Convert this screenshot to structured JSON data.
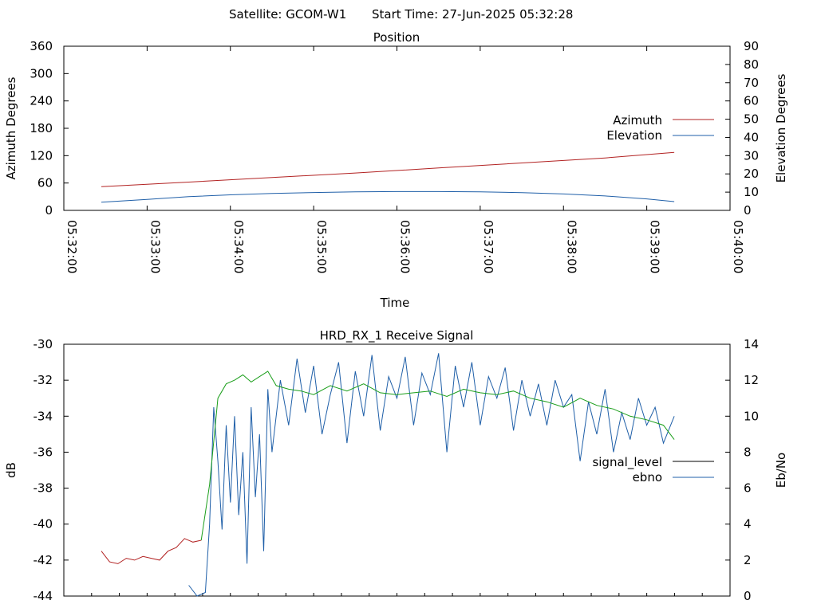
{
  "header": {
    "satellite": "Satellite: GCOM-W1",
    "start_time": "Start Time: 27-Jun-2025 05:32:28"
  },
  "chart_data": [
    {
      "type": "line",
      "title": "Position",
      "xlabel": "Time",
      "ylabel": "Azimuth Degrees",
      "y2label": "Elevation Degrees",
      "x_ticks": [
        "05:32:00",
        "05:33:00",
        "05:34:00",
        "05:35:00",
        "05:36:00",
        "05:37:00",
        "05:38:00",
        "05:39:00",
        "05:40:00"
      ],
      "x_range_minutes": [
        0,
        8
      ],
      "ylim": [
        0,
        360
      ],
      "y_ticks": [
        "0",
        "60",
        "120",
        "180",
        "240",
        "300",
        "360"
      ],
      "y2lim": [
        0,
        90
      ],
      "y2_ticks": [
        "0",
        "10",
        "20",
        "30",
        "40",
        "50",
        "60",
        "70",
        "80",
        "90"
      ],
      "legend_position": "right",
      "series": [
        {
          "name": "Azimuth",
          "axis": "y",
          "color": "#b22222",
          "x": [
            0.45,
            1.5,
            2.5,
            3.5,
            4.5,
            5.5,
            6.5,
            7.33
          ],
          "values": [
            52,
            62,
            72,
            82,
            93,
            104,
            115,
            127
          ]
        },
        {
          "name": "Elevation",
          "axis": "y2",
          "color": "#1f5fa8",
          "x": [
            0.45,
            1.0,
            1.5,
            2.0,
            2.5,
            3.0,
            3.5,
            4.0,
            4.5,
            5.0,
            5.5,
            6.0,
            6.5,
            7.0,
            7.33
          ],
          "values": [
            4.5,
            6.0,
            7.5,
            8.5,
            9.3,
            9.8,
            10.2,
            10.3,
            10.3,
            10.2,
            9.7,
            9.0,
            7.9,
            6.3,
            4.8
          ]
        }
      ]
    },
    {
      "type": "line",
      "title": "HRD_RX_1 Receive Signal",
      "ylabel": "dB",
      "y2label": "Eb/No",
      "x_range_minutes": [
        0,
        8
      ],
      "ylim": [
        -44,
        -30
      ],
      "y_ticks": [
        "-44",
        "-42",
        "-40",
        "-38",
        "-36",
        "-34",
        "-32",
        "-30"
      ],
      "y2lim": [
        0,
        14
      ],
      "y2_ticks": [
        "0",
        "2",
        "4",
        "6",
        "8",
        "10",
        "12",
        "14"
      ],
      "legend_position": "right",
      "series": [
        {
          "name": "signal_level",
          "legend_color": "#000000",
          "low_color": "#b22222",
          "high_color": "#1a9e1a",
          "axis": "y",
          "x": [
            0.45,
            0.55,
            0.65,
            0.75,
            0.85,
            0.95,
            1.05,
            1.15,
            1.25,
            1.35,
            1.45,
            1.55,
            1.65,
            1.75,
            1.85,
            1.95,
            2.05,
            2.15,
            2.25,
            2.35,
            2.45,
            2.55,
            2.7,
            2.85,
            3.0,
            3.2,
            3.4,
            3.6,
            3.8,
            4.0,
            4.2,
            4.4,
            4.6,
            4.8,
            5.0,
            5.2,
            5.4,
            5.6,
            5.8,
            6.0,
            6.2,
            6.4,
            6.6,
            6.8,
            7.0,
            7.2,
            7.33
          ],
          "values": [
            -41.5,
            -42.1,
            -42.2,
            -41.9,
            -42.0,
            -41.8,
            -41.9,
            -42.0,
            -41.5,
            -41.3,
            -40.8,
            -41.0,
            -40.9,
            -37.8,
            -33.0,
            -32.2,
            -32.0,
            -31.7,
            -32.1,
            -31.8,
            -31.5,
            -32.3,
            -32.5,
            -32.6,
            -32.8,
            -32.3,
            -32.6,
            -32.2,
            -32.7,
            -32.8,
            -32.7,
            -32.6,
            -32.9,
            -32.5,
            -32.7,
            -32.8,
            -32.6,
            -33.0,
            -33.2,
            -33.5,
            -33.0,
            -33.4,
            -33.6,
            -34.0,
            -34.2,
            -34.5,
            -35.3
          ]
        },
        {
          "name": "ebno",
          "axis": "y2",
          "color": "#1f5fa8",
          "x": [
            1.5,
            1.6,
            1.7,
            1.75,
            1.8,
            1.85,
            1.9,
            1.95,
            2.0,
            2.05,
            2.1,
            2.15,
            2.2,
            2.25,
            2.3,
            2.35,
            2.4,
            2.45,
            2.5,
            2.6,
            2.7,
            2.8,
            2.9,
            3.0,
            3.1,
            3.2,
            3.3,
            3.4,
            3.5,
            3.6,
            3.7,
            3.8,
            3.9,
            4.0,
            4.1,
            4.2,
            4.3,
            4.4,
            4.5,
            4.6,
            4.7,
            4.8,
            4.9,
            5.0,
            5.1,
            5.2,
            5.3,
            5.4,
            5.5,
            5.6,
            5.7,
            5.8,
            5.9,
            6.0,
            6.1,
            6.2,
            6.3,
            6.4,
            6.5,
            6.6,
            6.7,
            6.8,
            6.9,
            7.0,
            7.1,
            7.2,
            7.33
          ],
          "values": [
            0.6,
            0.0,
            0.2,
            4.0,
            10.5,
            7.5,
            3.7,
            9.5,
            5.2,
            10.0,
            4.5,
            8.0,
            1.8,
            10.5,
            5.5,
            9.0,
            2.5,
            11.5,
            8.0,
            12.0,
            9.5,
            13.2,
            10.2,
            12.8,
            9.0,
            11.2,
            13.0,
            8.5,
            12.5,
            10.0,
            13.4,
            9.2,
            12.2,
            11.0,
            13.3,
            9.5,
            12.4,
            11.2,
            13.5,
            8.0,
            12.8,
            10.5,
            13.0,
            9.5,
            12.2,
            11.0,
            12.7,
            9.2,
            12.0,
            10.0,
            11.8,
            9.5,
            12.0,
            10.5,
            11.2,
            7.5,
            10.8,
            9.0,
            11.5,
            8.0,
            10.2,
            8.7,
            11.0,
            9.5,
            10.5,
            8.5,
            10.0
          ]
        }
      ]
    }
  ]
}
